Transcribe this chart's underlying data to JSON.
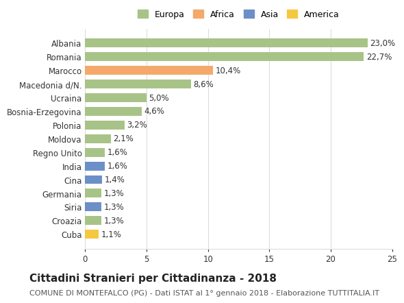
{
  "categories": [
    "Albania",
    "Romania",
    "Marocco",
    "Macedonia d/N.",
    "Ucraina",
    "Bosnia-Erzegovina",
    "Polonia",
    "Moldova",
    "Regno Unito",
    "India",
    "Cina",
    "Germania",
    "Siria",
    "Croazia",
    "Cuba"
  ],
  "values": [
    23.0,
    22.7,
    10.4,
    8.6,
    5.0,
    4.6,
    3.2,
    2.1,
    1.6,
    1.6,
    1.4,
    1.3,
    1.3,
    1.3,
    1.1
  ],
  "labels": [
    "23,0%",
    "22,7%",
    "10,4%",
    "8,6%",
    "5,0%",
    "4,6%",
    "3,2%",
    "2,1%",
    "1,6%",
    "1,6%",
    "1,4%",
    "1,3%",
    "1,3%",
    "1,3%",
    "1,1%"
  ],
  "continents": [
    "Europa",
    "Europa",
    "Africa",
    "Europa",
    "Europa",
    "Europa",
    "Europa",
    "Europa",
    "Europa",
    "Asia",
    "Asia",
    "Europa",
    "Asia",
    "Europa",
    "America"
  ],
  "colors": {
    "Europa": "#a8c387",
    "Africa": "#f4a96a",
    "Asia": "#6d8fc7",
    "America": "#f5c842"
  },
  "legend_colors": {
    "Europa": "#a8c387",
    "Africa": "#f4a96a",
    "Asia": "#6d8fc7",
    "America": "#f5c842"
  },
  "xlim": [
    0,
    25
  ],
  "xticks": [
    0,
    5,
    10,
    15,
    20,
    25
  ],
  "title": "Cittadini Stranieri per Cittadinanza - 2018",
  "subtitle": "COMUNE DI MONTEFALCO (PG) - Dati ISTAT al 1° gennaio 2018 - Elaborazione TUTTITALIA.IT",
  "background_color": "#ffffff",
  "grid_color": "#dddddd",
  "bar_height": 0.65,
  "label_fontsize": 8.5,
  "tick_fontsize": 8.5,
  "title_fontsize": 11,
  "subtitle_fontsize": 8
}
